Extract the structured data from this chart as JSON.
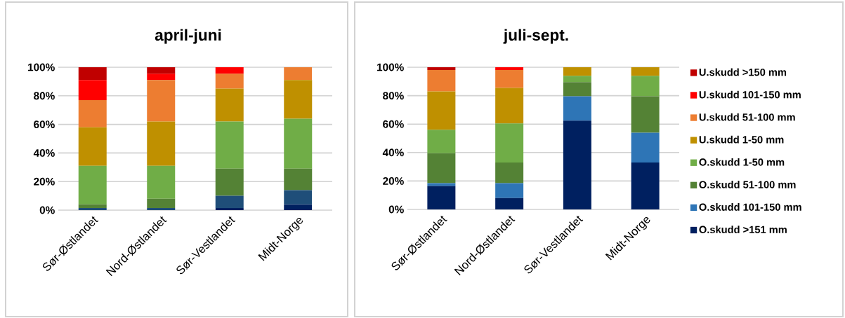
{
  "chart_data": [
    {
      "type": "bar",
      "title": "april-juni",
      "stacked": true,
      "grid": "y",
      "categories": [
        "Sør-Østlandet",
        "Nord-Østlandet",
        "Sør-Vestlandet",
        "Midt-Norge"
      ],
      "ylim": [
        0,
        100
      ],
      "yticks": [
        {
          "value": 0,
          "label": "0%"
        },
        {
          "value": 20,
          "label": "20%"
        },
        {
          "value": 40,
          "label": "40%"
        },
        {
          "value": 60,
          "label": "60%"
        },
        {
          "value": 80,
          "label": "80%"
        },
        {
          "value": 100,
          "label": "100%"
        }
      ],
      "series": [
        {
          "color": "#002060",
          "values": [
            0,
            0,
            1.5,
            4
          ]
        },
        {
          "color": "#1f4e79",
          "values": [
            1.5,
            1.5,
            8.5,
            10
          ]
        },
        {
          "color": "#548235",
          "values": [
            2.5,
            6.5,
            19,
            15
          ]
        },
        {
          "color": "#70ad47",
          "values": [
            27,
            23,
            33,
            35
          ]
        },
        {
          "color": "#bf9000",
          "values": [
            27,
            31,
            23,
            27
          ]
        },
        {
          "color": "#ed7d31",
          "values": [
            19,
            29,
            10.5,
            9
          ]
        },
        {
          "color": "#ff0000",
          "values": [
            14,
            4.5,
            4.5,
            0
          ]
        },
        {
          "color": "#c00000",
          "values": [
            9,
            4.5,
            0,
            0
          ]
        }
      ]
    },
    {
      "type": "bar",
      "title": "juli-sept.",
      "stacked": true,
      "grid": "y",
      "legend": "right",
      "categories": [
        "Sør-Østlandet",
        "Nord-Østlandet",
        "Sør-Vestlandet",
        "Midt-Norge"
      ],
      "ylim": [
        0,
        100
      ],
      "yticks": [
        {
          "value": 0,
          "label": "0%"
        },
        {
          "value": 20,
          "label": "20%"
        },
        {
          "value": 40,
          "label": "40%"
        },
        {
          "value": 60,
          "label": "60%"
        },
        {
          "value": 80,
          "label": "80%"
        },
        {
          "value": 100,
          "label": "100%"
        }
      ],
      "series": [
        {
          "name": "O.skudd >151 mm",
          "color": "#002060",
          "values": [
            16.5,
            8,
            62.5,
            33
          ]
        },
        {
          "name": "O.skudd 101-150 mm",
          "color": "#2e75b6",
          "values": [
            2,
            10.5,
            17,
            21
          ]
        },
        {
          "name": "O.skudd 51-100 mm",
          "color": "#548235",
          "values": [
            21,
            14.5,
            10,
            25.5
          ]
        },
        {
          "name": "O.skudd 1-50 mm",
          "color": "#70ad47",
          "values": [
            16.5,
            27.5,
            4.5,
            14.5
          ]
        },
        {
          "name": "U.skudd 1-50 mm",
          "color": "#bf9000",
          "values": [
            27,
            25,
            6,
            6
          ]
        },
        {
          "name": "U.skudd 51-100 mm",
          "color": "#ed7d31",
          "values": [
            15,
            12.5,
            0,
            0
          ]
        },
        {
          "name": "U.skudd 101-150 mm",
          "color": "#ff0000",
          "values": [
            0,
            2,
            0,
            0
          ]
        },
        {
          "name": "U.skudd >150 mm",
          "color": "#c00000",
          "values": [
            2,
            0,
            0,
            0
          ]
        }
      ]
    }
  ]
}
